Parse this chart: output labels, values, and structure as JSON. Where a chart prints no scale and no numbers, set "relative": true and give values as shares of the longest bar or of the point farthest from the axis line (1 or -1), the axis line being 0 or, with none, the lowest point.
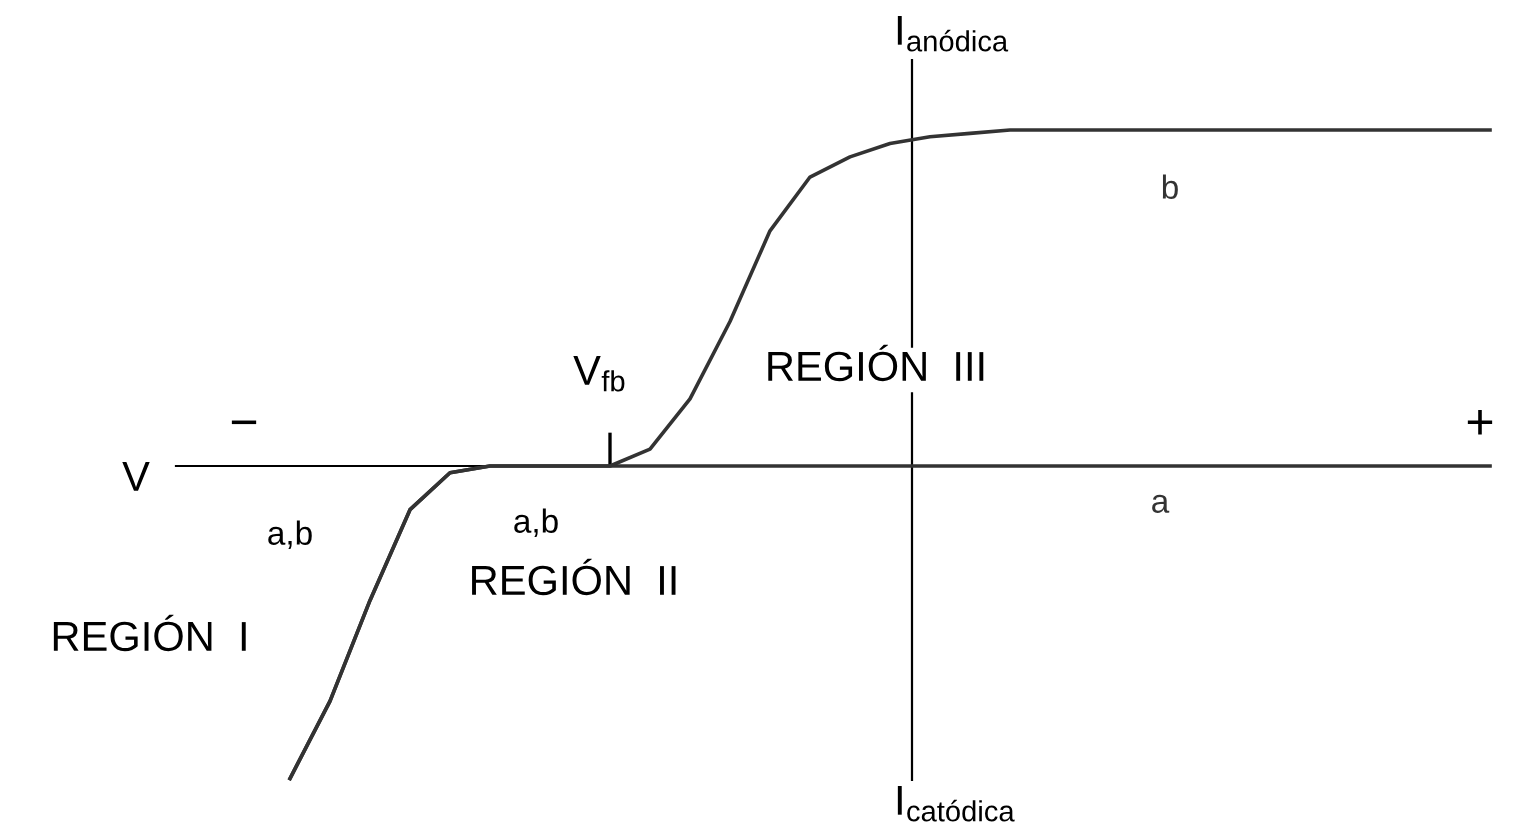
{
  "chart_data": {
    "type": "line",
    "relative": true,
    "xlabel": "V",
    "categories": [
      null,
      null,
      null,
      null,
      null,
      null,
      null,
      null,
      null,
      null,
      null,
      null,
      null,
      null,
      null,
      null,
      null,
      null,
      null,
      null,
      null,
      null,
      null,
      null,
      null,
      null,
      null,
      null,
      null,
      null,
      null
    ],
    "series": [
      {
        "name": "b",
        "color": "#333333",
        "values": [
          -0.93,
          -0.7,
          -0.4,
          -0.13,
          -0.02,
          0,
          0,
          0,
          0,
          0.05,
          0.2,
          0.43,
          0.7,
          0.86,
          0.92,
          0.96,
          0.98,
          0.99,
          1,
          1,
          1,
          1,
          1,
          1,
          1,
          1,
          1,
          1,
          1,
          1,
          1
        ]
      },
      {
        "name": "a",
        "color": "#333333",
        "values": [
          -0.93,
          -0.7,
          -0.4,
          -0.13,
          -0.02,
          0,
          0,
          0,
          0,
          0,
          0,
          0,
          0,
          0,
          0,
          0,
          0,
          0,
          0,
          0,
          0,
          0,
          0,
          0,
          0,
          0,
          0,
          0,
          0,
          0,
          0
        ]
      }
    ],
    "annotations": [
      "−",
      "+",
      "I$_{anódica}$",
      "I$_{catódica}$",
      "V$_{fb}$",
      "REGIÓN  III",
      "REGIÓN  II",
      "REGIÓN  I",
      "a,b",
      "a,b"
    ],
    "grid": false,
    "legend": false,
    "marker": "none",
    "line_style": "solid"
  }
}
